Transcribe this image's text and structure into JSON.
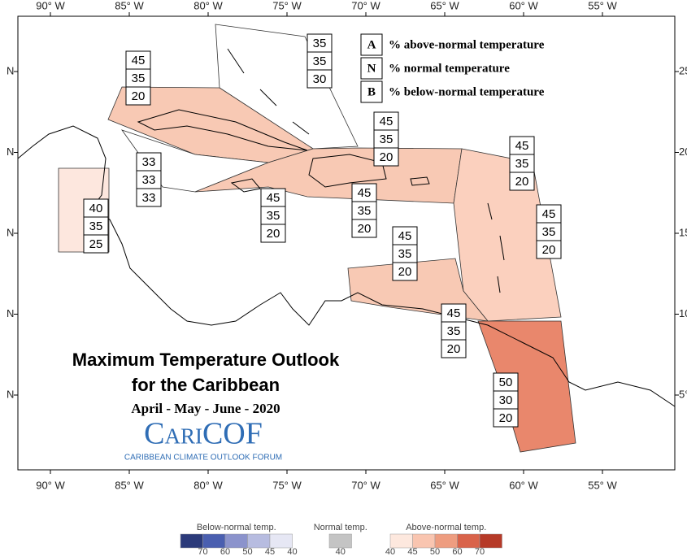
{
  "lon_labels": [
    "90° W",
    "85° W",
    "80° W",
    "75° W",
    "70° W",
    "65° W",
    "60° W",
    "55° W"
  ],
  "lat_labels_left": [
    "N",
    "N",
    "N",
    "N",
    "N"
  ],
  "lat_labels_right": [
    "25",
    "20",
    "15",
    "10",
    "5°"
  ],
  "key": [
    {
      "letter": "A",
      "text": "% above-normal temperature"
    },
    {
      "letter": "N",
      "text": "% normal temperature"
    },
    {
      "letter": "B",
      "text": "% below-normal temperature"
    }
  ],
  "regions": [
    {
      "values": [
        35,
        35,
        30
      ]
    },
    {
      "values": [
        45,
        35,
        20
      ]
    },
    {
      "values": [
        45,
        35,
        20
      ]
    },
    {
      "values": [
        45,
        35,
        20
      ]
    },
    {
      "values": [
        33,
        33,
        33
      ]
    },
    {
      "values": [
        45,
        35,
        20
      ]
    },
    {
      "values": [
        45,
        35,
        20
      ]
    },
    {
      "values": [
        40,
        35,
        25
      ]
    },
    {
      "values": [
        45,
        35,
        20
      ]
    },
    {
      "values": [
        45,
        35,
        20
      ]
    },
    {
      "values": [
        45,
        35,
        20
      ]
    },
    {
      "values": [
        50,
        30,
        20
      ]
    }
  ],
  "title": {
    "line1": "Maximum Temperature Outlook",
    "line2": "for the Caribbean",
    "period": "April - May - June - 2020"
  },
  "logo": {
    "name": "CariCOF",
    "subtitle": "CARIBBEAN CLIMATE OUTLOOK FORUM"
  },
  "colorbar": [
    {
      "label": "Below-normal temp.",
      "ticks": [
        70,
        60,
        50,
        45,
        40
      ],
      "colors": [
        "#2b3a7a",
        "#4a5fb0",
        "#8b93cc",
        "#b7bce0",
        "#e6e7f4"
      ]
    },
    {
      "label": "Normal temp.",
      "ticks": [
        40
      ],
      "colors": [
        "#c4c4c4"
      ]
    },
    {
      "label": "Above-normal temp.",
      "ticks": [
        40,
        45,
        50,
        60,
        70
      ],
      "colors": [
        "#fde8de",
        "#f9c5b0",
        "#ee9d80",
        "#d9634a",
        "#b63a28"
      ]
    }
  ]
}
